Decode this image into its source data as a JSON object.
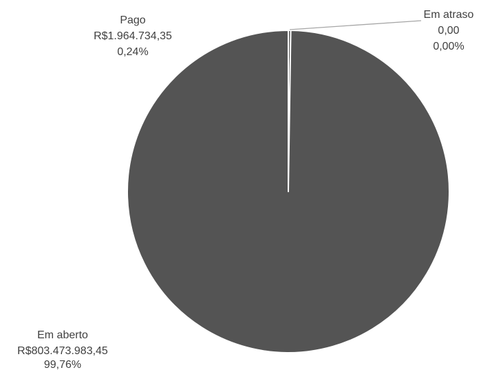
{
  "chart_data": {
    "type": "pie",
    "title": "",
    "colors": {
      "slice": "#545454",
      "separator": "#ffffff",
      "leader_line": "#a6a6a6",
      "label_text": "#404040"
    },
    "slices": [
      {
        "label": "Pago",
        "value_text": "R$1.964.734,35",
        "percent_text": "0,24%",
        "value": 1964734.35,
        "percent": 0.24
      },
      {
        "label": "Em atraso",
        "value_text": "0,00",
        "percent_text": "0,00%",
        "value": 0.0,
        "percent": 0.0
      },
      {
        "label": "Em aberto",
        "value_text": "R$803.473.983,45",
        "percent_text": "99,76%",
        "value": 803473983.45,
        "percent": 99.76
      }
    ]
  }
}
